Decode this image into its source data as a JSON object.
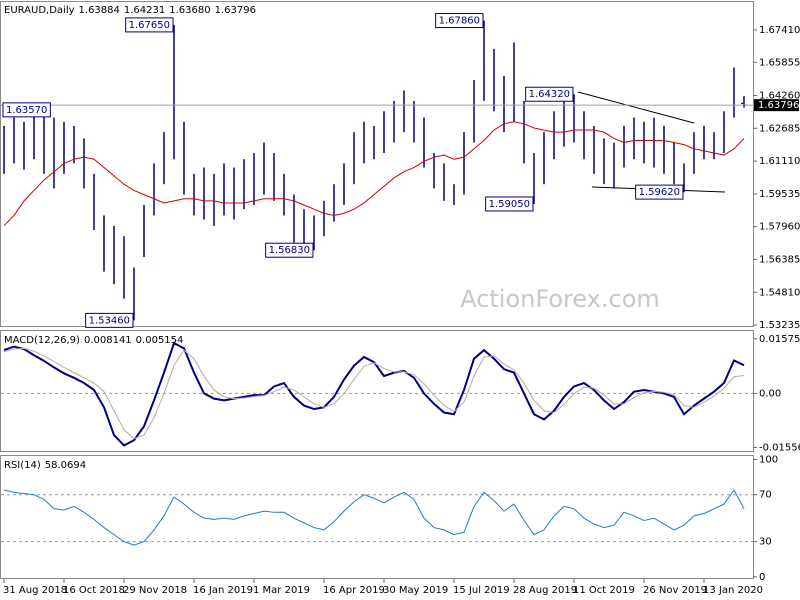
{
  "chart_data": [
    {
      "type": "hilo",
      "title": "EURAUD,Daily",
      "quote": {
        "open": 1.63884,
        "high": 1.64231,
        "low": {
          "value": 1.6368,
          "label": "1.63680"
        },
        "close": 1.63796
      },
      "color": "#000080",
      "high": [
        1.628,
        1.632,
        1.63,
        1.634,
        1.6357,
        1.632,
        1.63,
        1.628,
        1.622,
        1.605,
        1.585,
        1.58,
        1.575,
        1.56,
        1.59,
        1.61,
        1.625,
        1.6765,
        1.63,
        1.605,
        1.608,
        1.605,
        1.61,
        1.608,
        1.612,
        1.615,
        1.62,
        1.615,
        1.605,
        1.595,
        1.588,
        1.585,
        1.592,
        1.6,
        1.61,
        1.625,
        1.63,
        1.628,
        1.635,
        1.64,
        1.645,
        1.64,
        1.632,
        1.615,
        1.61,
        1.6,
        1.625,
        1.65,
        1.6786,
        1.665,
        1.652,
        1.668,
        1.64,
        1.615,
        1.625,
        1.635,
        1.64,
        1.6432,
        1.635,
        1.628,
        1.622,
        1.62,
        1.628,
        1.632,
        1.63,
        1.632,
        1.628,
        1.62,
        1.61,
        1.625,
        1.628,
        1.625,
        1.635,
        1.656,
        1.64231
      ],
      "low": [
        1.605,
        1.61,
        1.607,
        1.612,
        1.605,
        1.598,
        1.605,
        1.61,
        1.598,
        1.578,
        1.558,
        1.552,
        1.545,
        1.5346,
        1.565,
        1.585,
        1.6,
        1.612,
        1.595,
        1.585,
        1.583,
        1.58,
        1.585,
        1.583,
        1.588,
        1.59,
        1.595,
        1.592,
        1.585,
        1.572,
        1.57,
        1.5683,
        1.575,
        1.582,
        1.59,
        1.6,
        1.61,
        1.612,
        1.615,
        1.62,
        1.625,
        1.62,
        1.608,
        1.598,
        1.592,
        1.59,
        1.595,
        1.62,
        1.64,
        1.635,
        1.625,
        1.63,
        1.61,
        1.5905,
        1.6,
        1.612,
        1.618,
        1.62,
        1.612,
        1.605,
        1.6,
        1.598,
        1.608,
        1.612,
        1.61,
        1.608,
        1.605,
        1.6,
        1.5962,
        1.605,
        1.612,
        1.612,
        1.615,
        1.632,
        1.6368
      ],
      "ma": {
        "color": "#d40000",
        "values": [
          1.58,
          1.585,
          1.592,
          1.597,
          1.602,
          1.606,
          1.61,
          1.612,
          1.613,
          1.612,
          1.608,
          1.604,
          1.6,
          1.597,
          1.595,
          1.593,
          1.591,
          1.592,
          1.593,
          1.593,
          1.592,
          1.592,
          1.591,
          1.591,
          1.591,
          1.592,
          1.593,
          1.593,
          1.593,
          1.592,
          1.59,
          1.588,
          1.586,
          1.585,
          1.586,
          1.588,
          1.591,
          1.595,
          1.599,
          1.603,
          1.606,
          1.608,
          1.611,
          1.613,
          1.614,
          1.612,
          1.613,
          1.617,
          1.621,
          1.626,
          1.629,
          1.63,
          1.629,
          1.627,
          1.626,
          1.625,
          1.625,
          1.626,
          1.626,
          1.626,
          1.625,
          1.622,
          1.62,
          1.621,
          1.621,
          1.621,
          1.621,
          1.62,
          1.619,
          1.617,
          1.616,
          1.615,
          1.614,
          1.617,
          1.622
        ]
      },
      "annotations": [
        {
          "value": 1.6357,
          "label": "1.63570"
        },
        {
          "value": 1.6765,
          "label": "1.67650"
        },
        {
          "value": 1.6786,
          "label": "1.67860"
        },
        {
          "value": 1.6432,
          "label": "1.64320"
        },
        {
          "value": 1.5905,
          "label": "1.59050"
        },
        {
          "value": 1.5962,
          "label": "1.59620"
        },
        {
          "value": 1.5683,
          "label": "1.56830"
        },
        {
          "value": 1.5346,
          "label": "1.53460"
        }
      ],
      "watermark": "ActionForex.com",
      "ylim": [
        1.5319,
        1.6875
      ],
      "yticks": [
        {
          "value": 1.6741,
          "label": "1.67410"
        },
        1.65855,
        {
          "value": 1.6426,
          "label": "1.64260"
        },
        1.62685,
        {
          "value": 1.6111,
          "label": "1.61110"
        },
        1.59535,
        {
          "value": 1.5796,
          "label": "1.57960"
        },
        1.56385,
        {
          "value": 1.5481,
          "label": "1.54810"
        },
        1.53235
      ]
    },
    {
      "type": "line",
      "title": "MACD(12,26,9)",
      "series": [
        {
          "color": "#000080",
          "values": [
            0.0125,
            0.0135,
            0.0128,
            0.011,
            0.0094,
            0.0075,
            0.0058,
            0.0045,
            0.003,
            0.001,
            -0.004,
            -0.012,
            -0.015,
            -0.0135,
            -0.0095,
            -0.002,
            0.006,
            0.0145,
            0.013,
            0.006,
            0,
            -0.0015,
            -0.002,
            -0.0015,
            -0.001,
            -0.0005,
            -0.0005,
            0.002,
            0.003,
            -0.001,
            -0.0035,
            -0.0045,
            -0.004,
            -0.001,
            0.004,
            0.008,
            0.0105,
            0.009,
            0.005,
            0.006,
            0.0065,
            0.0045,
            0,
            -0.003,
            -0.0055,
            -0.006,
            0.001,
            0.01,
            0.0125,
            0.01,
            0.007,
            0.006,
            0,
            -0.006,
            -0.0075,
            -0.005,
            -0.001,
            0.002,
            0.003,
            0.001,
            -0.002,
            -0.0045,
            -0.0025,
            0.0005,
            0.001,
            0.0005,
            0,
            -0.001,
            -0.006,
            -0.0035,
            -0.0015,
            0.0005,
            0.003,
            0.0095,
            0.008141
          ]
        },
        {
          "color": "#b8a8a8",
          "values": [
            0.012,
            0.0128,
            0.013,
            0.0122,
            0.0108,
            0.0092,
            0.0075,
            0.006,
            0.0045,
            0.003,
            0.0005,
            -0.005,
            -0.0105,
            -0.013,
            -0.012,
            -0.007,
            0,
            0.008,
            0.0125,
            0.01,
            0.005,
            0.001,
            -0.001,
            -0.0015,
            -0.0013,
            -0.0009,
            -0.0006,
            0.0005,
            0.0018,
            0.001,
            -0.001,
            -0.003,
            -0.004,
            -0.003,
            0,
            0.004,
            0.0078,
            0.0088,
            0.0072,
            0.0062,
            0.0062,
            0.0054,
            0.0028,
            -0.0005,
            -0.0035,
            -0.0052,
            -0.0025,
            0.005,
            0.0105,
            0.0108,
            0.0085,
            0.0068,
            0.003,
            -0.002,
            -0.005,
            -0.0055,
            -0.0032,
            0,
            0.0018,
            0.0015,
            -0.0005,
            -0.003,
            -0.003,
            -0.0012,
            0.0002,
            0.0006,
            0.0003,
            -0.0004,
            -0.0035,
            -0.004,
            -0.0025,
            -0.0008,
            0.0015,
            0.0048,
            0.005154
          ]
        }
      ],
      "ylim": [
        -0.0166,
        0.018
      ],
      "yticks": [
        0.01575,
        {
          "value": 0,
          "label": "0.00"
        },
        -0.015568
      ],
      "levels": [
        0
      ]
    },
    {
      "type": "line",
      "title": "RSI(14)",
      "series": [
        {
          "color": "#1e7ad6",
          "values": [
            74,
            72,
            71,
            70,
            66,
            58,
            57,
            60,
            55,
            49,
            42,
            36,
            30,
            27,
            30,
            40,
            52,
            68,
            62,
            55,
            50,
            49,
            50,
            49,
            52,
            54,
            56,
            55,
            55,
            50,
            46,
            42,
            40,
            47,
            56,
            64,
            70,
            67,
            63,
            68,
            72,
            66,
            50,
            42,
            40,
            36,
            38,
            60,
            72,
            65,
            56,
            62,
            48,
            36,
            40,
            52,
            60,
            58,
            50,
            45,
            42,
            44,
            55,
            52,
            48,
            50,
            45,
            40,
            44,
            52,
            54,
            58,
            62,
            74,
            58.0694
          ]
        }
      ],
      "ylim": [
        -1,
        103
      ],
      "yticks": [
        100,
        70,
        30,
        0
      ],
      "levels": [
        70,
        30
      ],
      "categories": [
        "31 Aug 2018",
        null,
        null,
        null,
        null,
        null,
        "16 Oct 2018",
        null,
        null,
        null,
        null,
        null,
        "29 Nov 2018",
        null,
        null,
        null,
        null,
        null,
        null,
        "16 Jan 2019",
        null,
        null,
        null,
        null,
        null,
        "1 Mar 2019",
        null,
        null,
        null,
        null,
        null,
        null,
        "16 Apr 2019",
        null,
        null,
        null,
        null,
        null,
        "30 May 2019",
        null,
        null,
        null,
        null,
        null,
        null,
        "15 Jul 2019",
        null,
        null,
        null,
        null,
        null,
        "28 Aug 2019",
        null,
        null,
        null,
        null,
        null,
        "11 Oct 2019",
        null,
        null,
        null,
        null,
        null,
        null,
        "26 Nov 2019",
        null,
        null,
        null,
        null,
        null,
        "13 Jan 2020",
        null,
        null,
        null,
        null
      ]
    }
  ]
}
